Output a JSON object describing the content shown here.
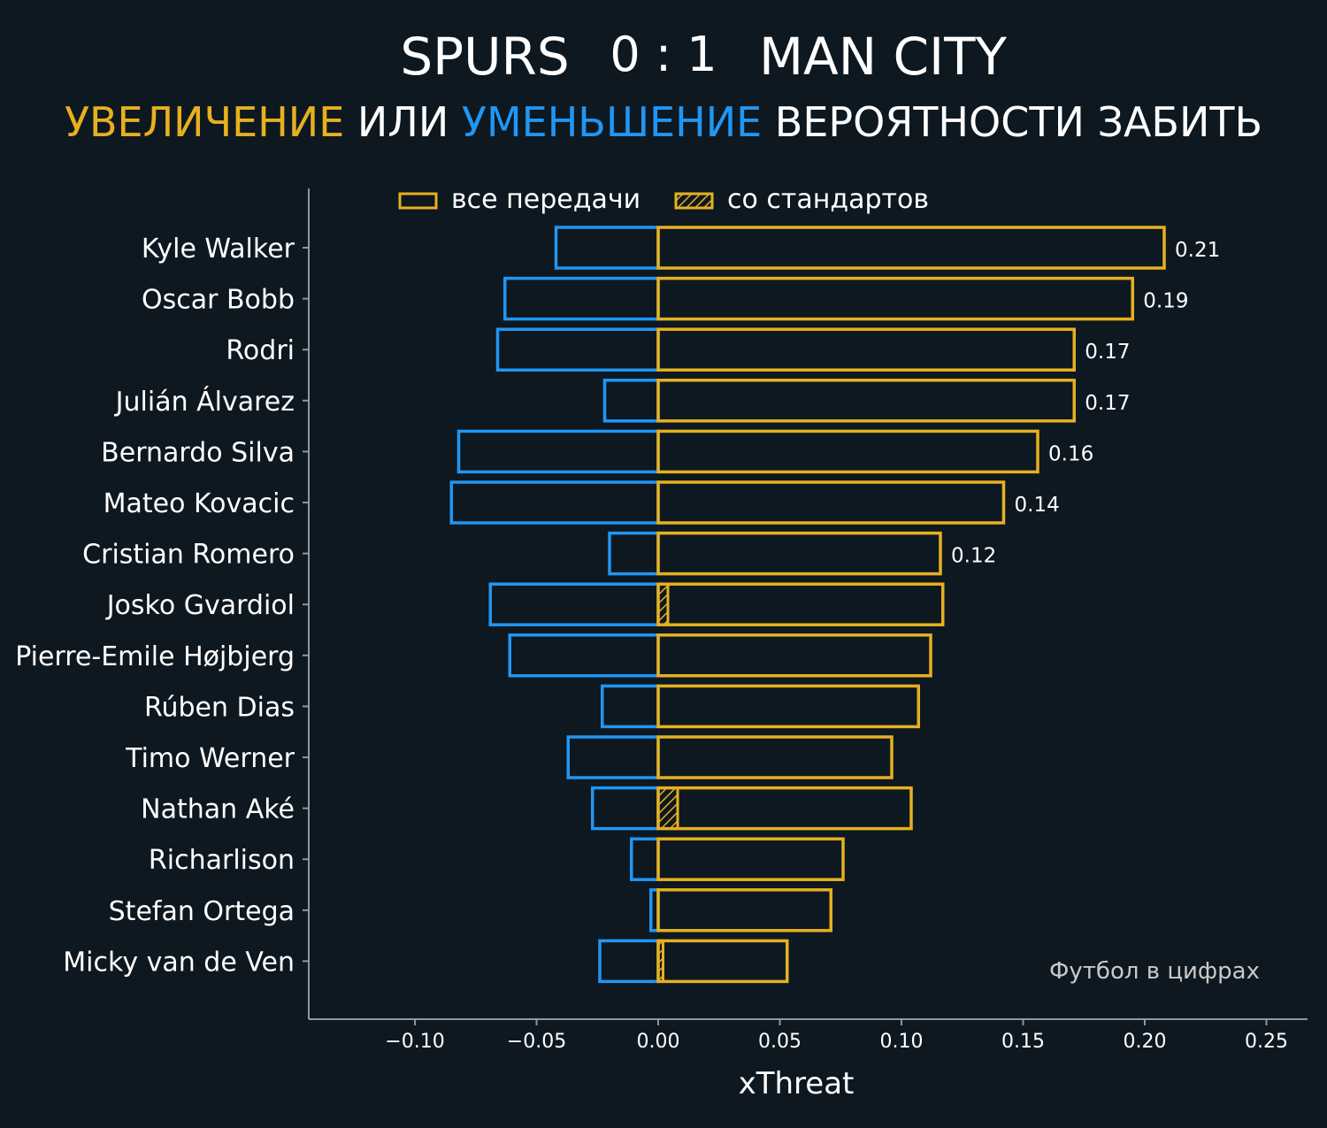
{
  "title": {
    "home": "SPURS",
    "score": "0 : 1",
    "away": "MAN CITY"
  },
  "subtitle": {
    "part1": "УВЕЛИЧЕНИЕ",
    "part2": " ИЛИ ",
    "part3": "УМЕНЬШЕНИЕ",
    "part4": " ВЕРОЯТНОСТИ ЗАБИТЬ"
  },
  "watermark": "Футбол в цифрах",
  "colors": {
    "background": "#0e1820",
    "positive": "#e6b01f",
    "negative": "#2196f3",
    "axis": "#8a9aa0",
    "text": "#ffffff"
  },
  "chart_data": {
    "type": "bar",
    "orientation": "horizontal",
    "xlabel": "xThreat",
    "xlim": [
      -0.143,
      0.267
    ],
    "xticks": [
      -0.1,
      -0.05,
      0.0,
      0.05,
      0.1,
      0.15,
      0.2,
      0.25
    ],
    "xtick_labels": [
      "−0.10",
      "−0.05",
      "0.00",
      "0.05",
      "0.10",
      "0.15",
      "0.20",
      "0.25"
    ],
    "legend": {
      "position": "top",
      "entries": [
        {
          "label": "все передачи",
          "style": "outline"
        },
        {
          "label": "со стандартов",
          "style": "hatched"
        }
      ]
    },
    "players": [
      {
        "name": "Kyle Walker",
        "positive": 0.208,
        "negative": -0.042,
        "set_piece": 0.0,
        "label": "0.21"
      },
      {
        "name": "Oscar Bobb",
        "positive": 0.195,
        "negative": -0.063,
        "set_piece": 0.0,
        "label": "0.19"
      },
      {
        "name": "Rodri",
        "positive": 0.171,
        "negative": -0.066,
        "set_piece": 0.0,
        "label": "0.17"
      },
      {
        "name": "Julián Álvarez",
        "positive": 0.171,
        "negative": -0.022,
        "set_piece": 0.0,
        "label": "0.17"
      },
      {
        "name": "Bernardo Silva",
        "positive": 0.156,
        "negative": -0.082,
        "set_piece": 0.0,
        "label": "0.16"
      },
      {
        "name": "Mateo Kovacic",
        "positive": 0.142,
        "negative": -0.085,
        "set_piece": 0.0,
        "label": "0.14"
      },
      {
        "name": "Cristian Romero",
        "positive": 0.116,
        "negative": -0.02,
        "set_piece": 0.0,
        "label": "0.12"
      },
      {
        "name": "Josko Gvardiol",
        "positive": 0.117,
        "negative": -0.069,
        "set_piece": 0.004,
        "label": ""
      },
      {
        "name": "Pierre-Emile Højbjerg",
        "positive": 0.112,
        "negative": -0.061,
        "set_piece": 0.0,
        "label": ""
      },
      {
        "name": "Rúben Dias",
        "positive": 0.107,
        "negative": -0.023,
        "set_piece": 0.0,
        "label": ""
      },
      {
        "name": "Timo Werner",
        "positive": 0.096,
        "negative": -0.037,
        "set_piece": 0.0,
        "label": ""
      },
      {
        "name": "Nathan Aké",
        "positive": 0.104,
        "negative": -0.027,
        "set_piece": 0.008,
        "label": ""
      },
      {
        "name": "Richarlison",
        "positive": 0.076,
        "negative": -0.011,
        "set_piece": 0.0,
        "label": ""
      },
      {
        "name": "Stefan Ortega",
        "positive": 0.071,
        "negative": -0.003,
        "set_piece": 0.0,
        "label": ""
      },
      {
        "name": "Micky van de Ven",
        "positive": 0.053,
        "negative": -0.024,
        "set_piece": 0.002,
        "label": ""
      }
    ]
  }
}
